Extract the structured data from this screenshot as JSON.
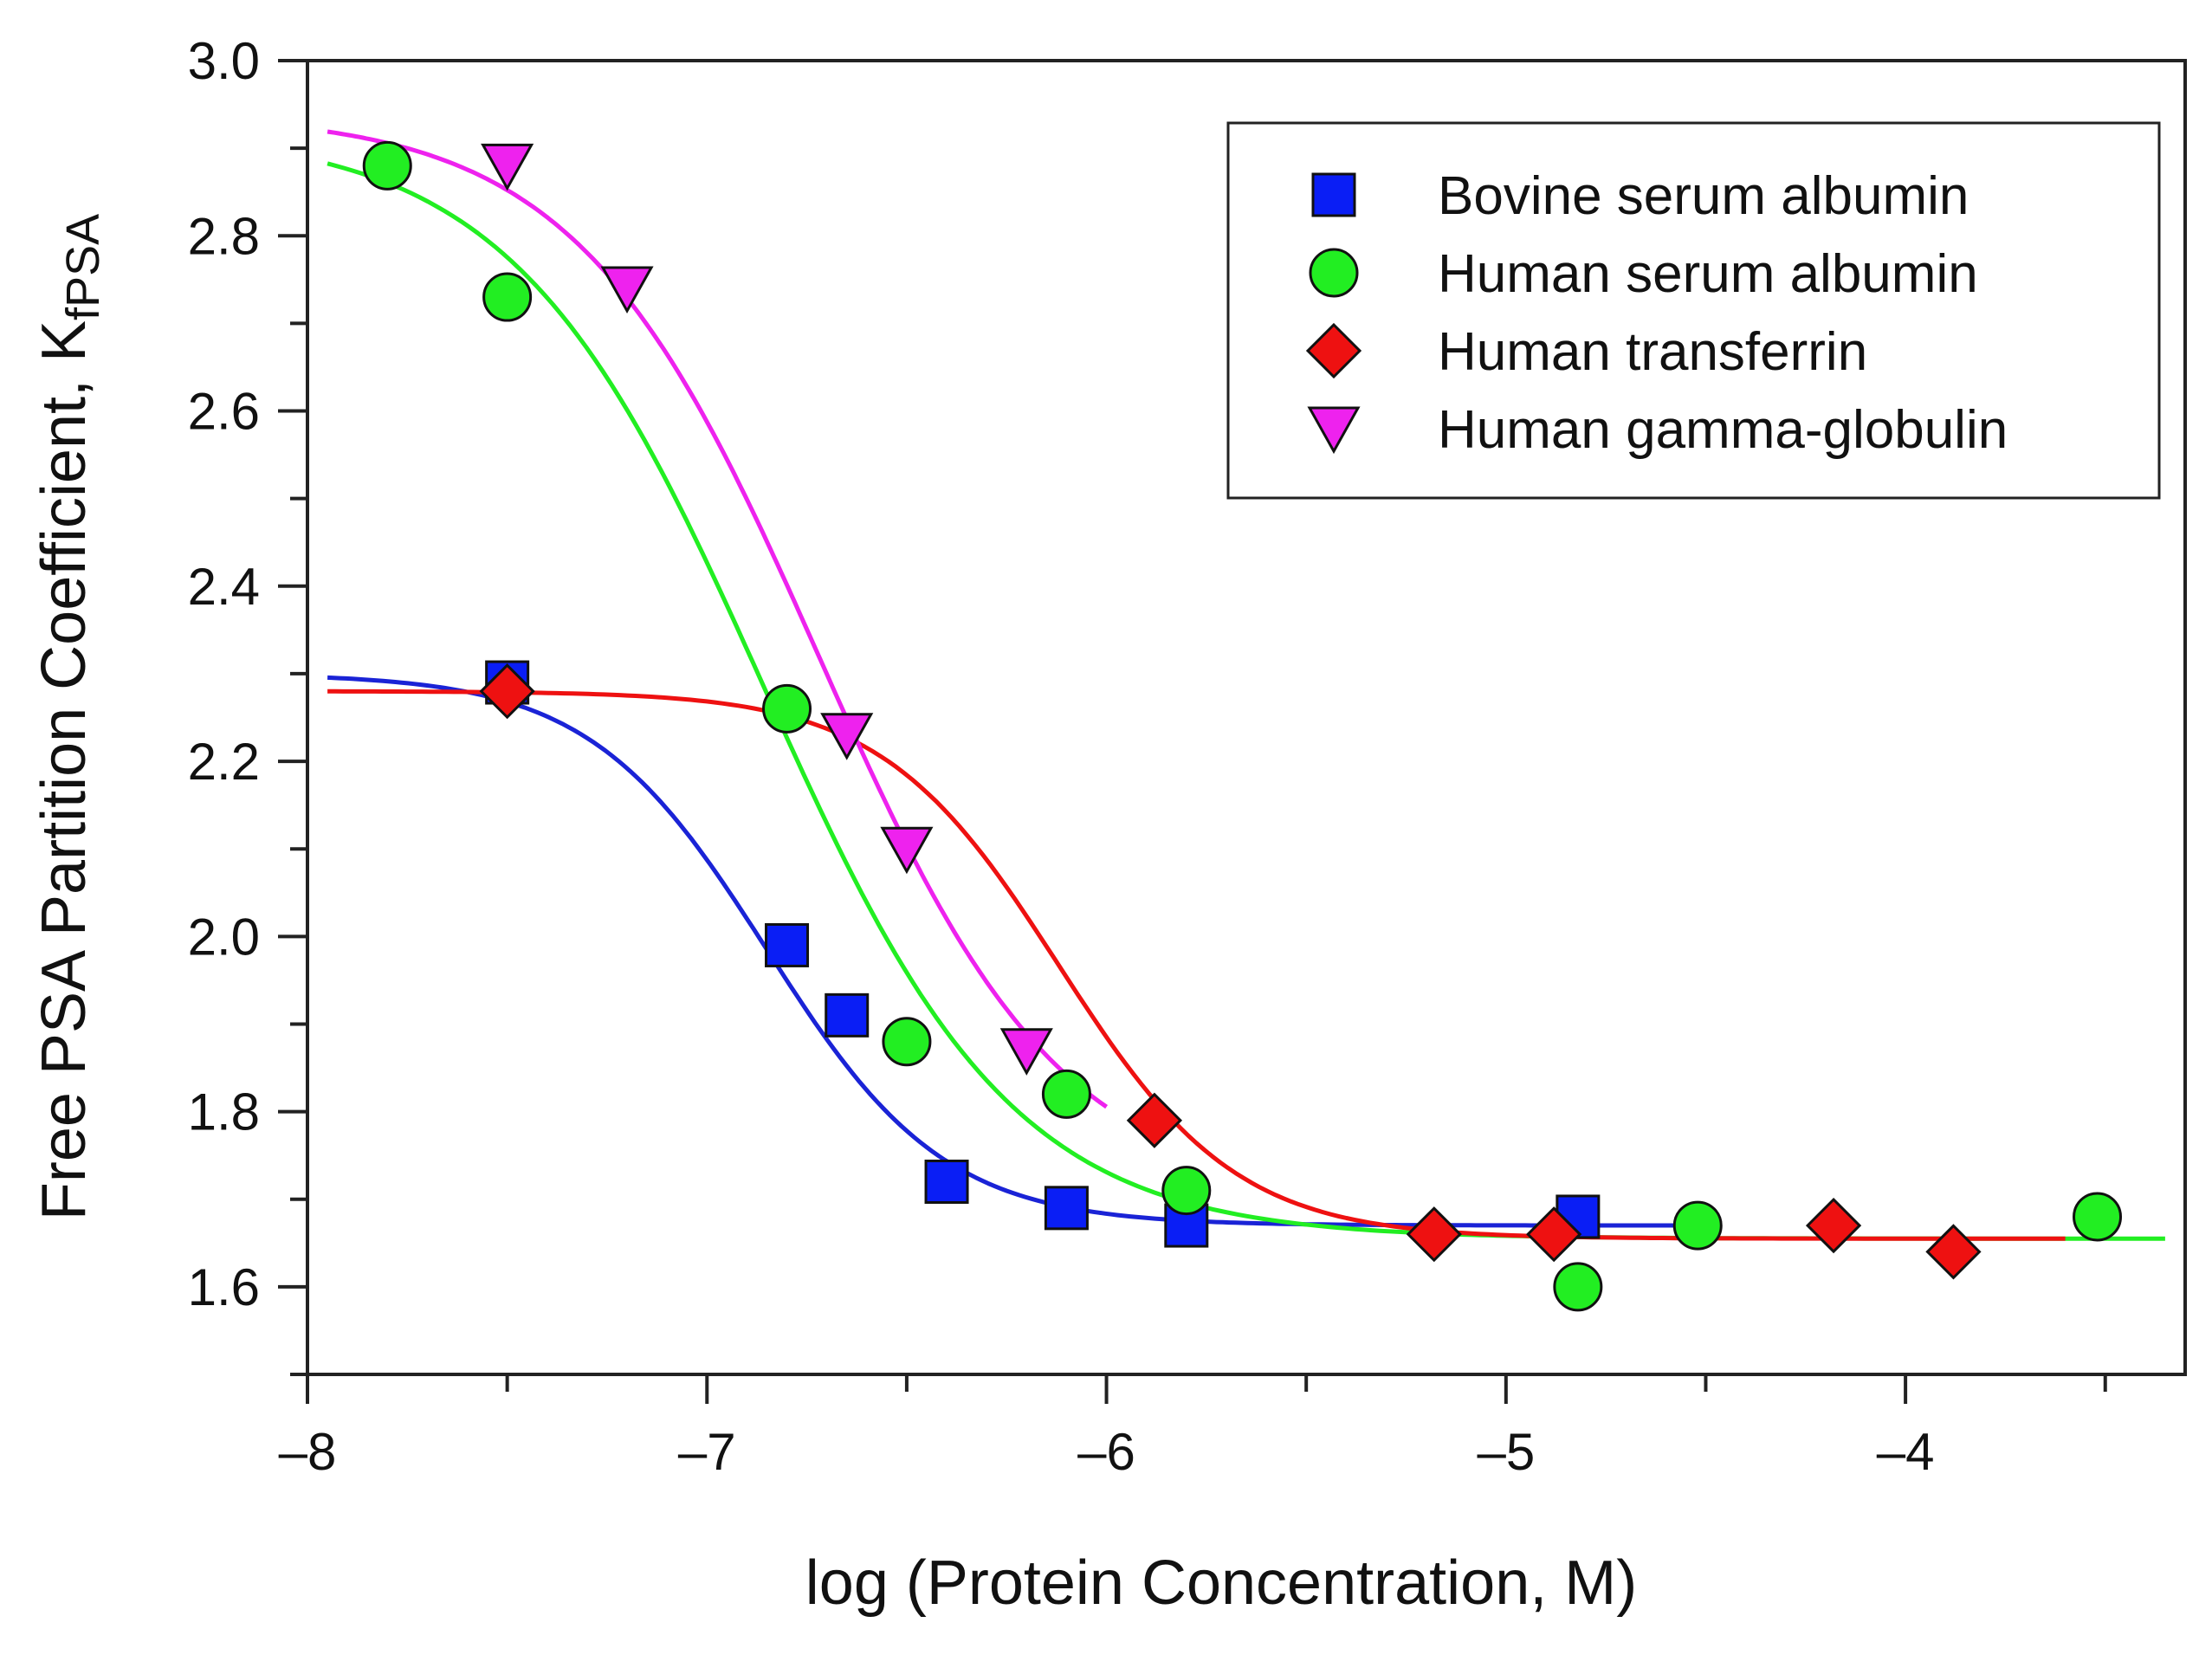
{
  "chart_data": {
    "type": "scatter",
    "title": "",
    "xlabel": "log (Protein Concentration, M)",
    "ylabel": "Free PSA Partition Coefficient, K",
    "ylabel_subscript": "fPSA",
    "xlim": [
      -8,
      -3.3
    ],
    "ylim": [
      1.5,
      3.0
    ],
    "x_ticks": [
      -8,
      -7,
      -6,
      -5,
      -4
    ],
    "x_tick_labels": [
      "–8",
      "–7",
      "–6",
      "–5",
      "–4"
    ],
    "y_ticks": [
      1.6,
      1.8,
      2.0,
      2.2,
      2.4,
      2.6,
      2.8,
      3.0
    ],
    "y_tick_labels": [
      "1.6",
      "1.8",
      "2.0",
      "2.2",
      "2.4",
      "2.6",
      "2.8",
      "3.0"
    ],
    "legend_position": "top-right",
    "grid": false,
    "series": [
      {
        "name": "Bovine serum albumin",
        "marker": "square",
        "color": "#0a1ef5",
        "line_color": "#1a23d6",
        "x": [
          -7.5,
          -6.8,
          -6.65,
          -6.4,
          -6.1,
          -5.8,
          -4.82
        ],
        "y": [
          2.29,
          1.99,
          1.91,
          1.72,
          1.69,
          1.67,
          1.68
        ],
        "fit": {
          "top": 2.3,
          "bottom": 1.67,
          "x50": -6.85,
          "slope": 4.5,
          "x_start": -7.95,
          "x_end": -4.55
        }
      },
      {
        "name": "Human serum albumin",
        "marker": "circle",
        "color": "#22ee22",
        "line_color": "#22ee22",
        "x": [
          -7.8,
          -7.5,
          -6.8,
          -6.5,
          -6.1,
          -5.8,
          -4.82,
          -4.52,
          -3.52
        ],
        "y": [
          2.88,
          2.73,
          2.26,
          1.88,
          1.82,
          1.71,
          1.6,
          1.67,
          1.68
        ],
        "fit": {
          "top": 2.92,
          "bottom": 1.655,
          "x50": -6.86,
          "slope": 3.2,
          "x_start": -7.95,
          "x_end": -3.35
        }
      },
      {
        "name": "Human  transferrin",
        "marker": "diamond",
        "color": "#ee1111",
        "line_color": "#ee1111",
        "x": [
          -7.5,
          -5.88,
          -5.18,
          -4.88,
          -4.18,
          -3.88
        ],
        "y": [
          2.28,
          1.79,
          1.66,
          1.66,
          1.67,
          1.64
        ],
        "fit": {
          "top": 2.28,
          "bottom": 1.655,
          "x50": -6.12,
          "slope": 4.5,
          "x_start": -7.95,
          "x_end": -3.6
        }
      },
      {
        "name": "Human gamma-globulin",
        "marker": "triangle-down",
        "color": "#ee22ee",
        "line_color": "#ee22ee",
        "x": [
          -7.5,
          -7.2,
          -6.65,
          -6.5,
          -6.2
        ],
        "y": [
          2.88,
          2.74,
          2.23,
          2.1,
          1.87
        ],
        "fit": {
          "top": 2.94,
          "bottom": 1.7,
          "x50": -6.72,
          "slope": 3.3,
          "x_start": -7.95,
          "x_end": -6.0
        }
      }
    ]
  }
}
